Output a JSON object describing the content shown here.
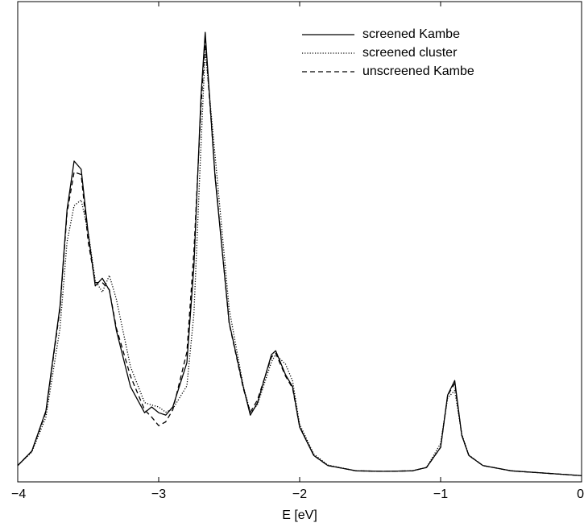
{
  "chart_data": {
    "type": "line",
    "x_label": "E [eV]",
    "xlim": [
      -4,
      0
    ],
    "xticks": [
      {
        "value": -4,
        "label": "−4"
      },
      {
        "value": -3,
        "label": "−3"
      },
      {
        "value": -2,
        "label": "−2"
      },
      {
        "value": -1,
        "label": "−1"
      },
      0
    ],
    "ylim": [
      0,
      100
    ],
    "legend": "top-right",
    "x": [
      -4,
      -3.9,
      -3.8,
      -3.7,
      -3.65,
      -3.6,
      -3.55,
      -3.5,
      -3.45,
      -3.4,
      -3.35,
      -3.3,
      -3.2,
      -3.1,
      -3.05,
      -3.0,
      -2.95,
      -2.9,
      -2.8,
      -2.75,
      -2.7,
      -2.67,
      -2.6,
      -2.5,
      -2.4,
      -2.35,
      -2.3,
      -2.2,
      -2.17,
      -2.1,
      -2.05,
      -2.0,
      -1.9,
      -1.8,
      -1.6,
      -1.4,
      -1.2,
      -1.1,
      -1.0,
      -0.95,
      -0.9,
      -0.85,
      -0.8,
      -0.7,
      -0.5,
      -0.2,
      0
    ],
    "series": [
      {
        "name": "screened Kambe",
        "color": "#000000",
        "dash": "none",
        "values": [
          3.4,
          6.4,
          14.8,
          36.6,
          56.7,
          66.8,
          65.1,
          51.7,
          40.8,
          42.4,
          39.9,
          31.5,
          19.8,
          14.4,
          15.6,
          14.4,
          13.9,
          15.6,
          24.8,
          45,
          80.2,
          93.6,
          63.4,
          33.2,
          19.8,
          13.9,
          16.4,
          26.5,
          27.3,
          22.3,
          19.8,
          11.4,
          5.5,
          3.4,
          2.3,
          2.2,
          2.3,
          3,
          7.2,
          18.1,
          21.1,
          9.7,
          5.5,
          3.4,
          2.3,
          1.7,
          1.3
        ]
      },
      {
        "name": "screened cluster",
        "color": "#000000",
        "dash": "1.2,2",
        "values": [
          3.4,
          6.2,
          13.5,
          32,
          50,
          57.5,
          58.7,
          52,
          42,
          39.5,
          43,
          38,
          24,
          16.5,
          16,
          15.6,
          14.5,
          15.2,
          20,
          35,
          70,
          90,
          68,
          36,
          20,
          14.5,
          16,
          25,
          26.5,
          24.5,
          21,
          12,
          5.8,
          3.5,
          2.3,
          2.2,
          2.3,
          3,
          8,
          17.5,
          19,
          10,
          5.6,
          3.4,
          2.3,
          1.7,
          1.3
        ]
      },
      {
        "name": "unscreened Kambe",
        "color": "#000000",
        "dash": "6,4",
        "values": [
          3.4,
          6.4,
          14.5,
          36,
          56,
          64.5,
          64,
          50,
          41.5,
          41.5,
          40,
          32,
          22,
          15,
          13.5,
          11.7,
          12.5,
          15,
          27,
          48,
          78,
          92,
          64,
          33,
          19.5,
          14.5,
          17,
          26,
          26.8,
          22,
          19.5,
          11.5,
          5.5,
          3.4,
          2.3,
          2.2,
          2.3,
          3,
          7.2,
          18,
          20.5,
          9.7,
          5.5,
          3.4,
          2.3,
          1.7,
          1.3
        ]
      }
    ]
  }
}
